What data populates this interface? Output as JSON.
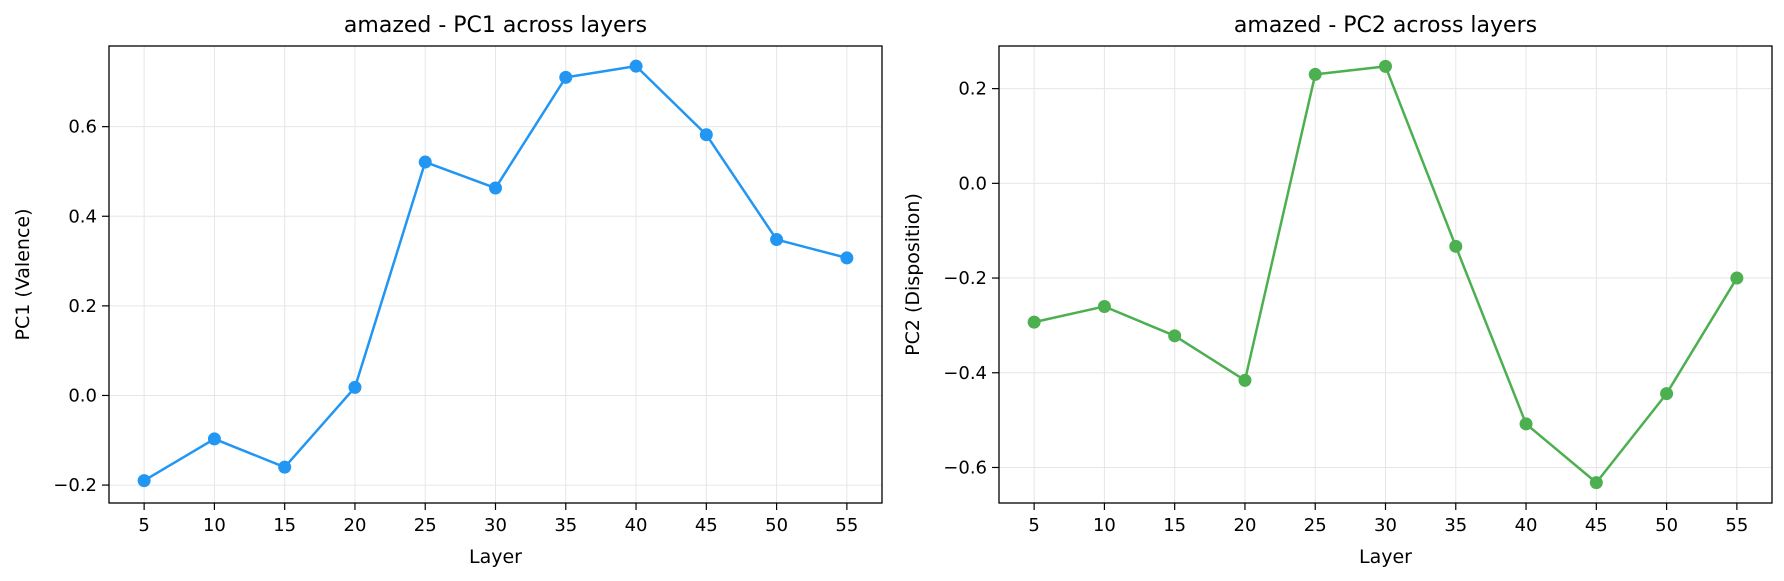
{
  "chart_data": [
    {
      "type": "line",
      "title": "amazed - PC1 across layers",
      "xlabel": "Layer",
      "ylabel": "PC1 (Valence)",
      "x": [
        5,
        10,
        15,
        20,
        25,
        30,
        35,
        40,
        45,
        50,
        55
      ],
      "series": [
        {
          "values": [
            -0.19,
            -0.097,
            -0.16,
            0.018,
            0.521,
            0.463,
            0.71,
            0.735,
            0.582,
            0.348,
            0.307
          ]
        }
      ],
      "xlim": [
        2.5,
        57.5
      ],
      "ylim": [
        -0.24,
        0.78
      ],
      "xticks": [
        5,
        10,
        15,
        20,
        25,
        30,
        35,
        40,
        45,
        50,
        55
      ],
      "yticks": [
        -0.2,
        0.0,
        0.2,
        0.4,
        0.6
      ],
      "ytick_labels": [
        "−0.2",
        "0.0",
        "0.2",
        "0.4",
        "0.6"
      ],
      "grid": true,
      "color": "#2196f3"
    },
    {
      "type": "line",
      "title": "amazed - PC2 across layers",
      "xlabel": "Layer",
      "ylabel": "PC2 (Disposition)",
      "x": [
        5,
        10,
        15,
        20,
        25,
        30,
        35,
        40,
        45,
        50,
        55
      ],
      "series": [
        {
          "values": [
            -0.293,
            -0.26,
            -0.322,
            -0.416,
            0.23,
            0.247,
            -0.133,
            -0.508,
            -0.632,
            -0.444,
            -0.2
          ]
        }
      ],
      "xlim": [
        2.5,
        57.5
      ],
      "ylim": [
        -0.675,
        0.29
      ],
      "xticks": [
        5,
        10,
        15,
        20,
        25,
        30,
        35,
        40,
        45,
        50,
        55
      ],
      "yticks": [
        -0.6,
        -0.4,
        -0.2,
        0.0,
        0.2
      ],
      "ytick_labels": [
        "−0.6",
        "−0.4",
        "−0.2",
        "0.0",
        "0.2"
      ],
      "grid": true,
      "color": "#4caf50"
    }
  ]
}
